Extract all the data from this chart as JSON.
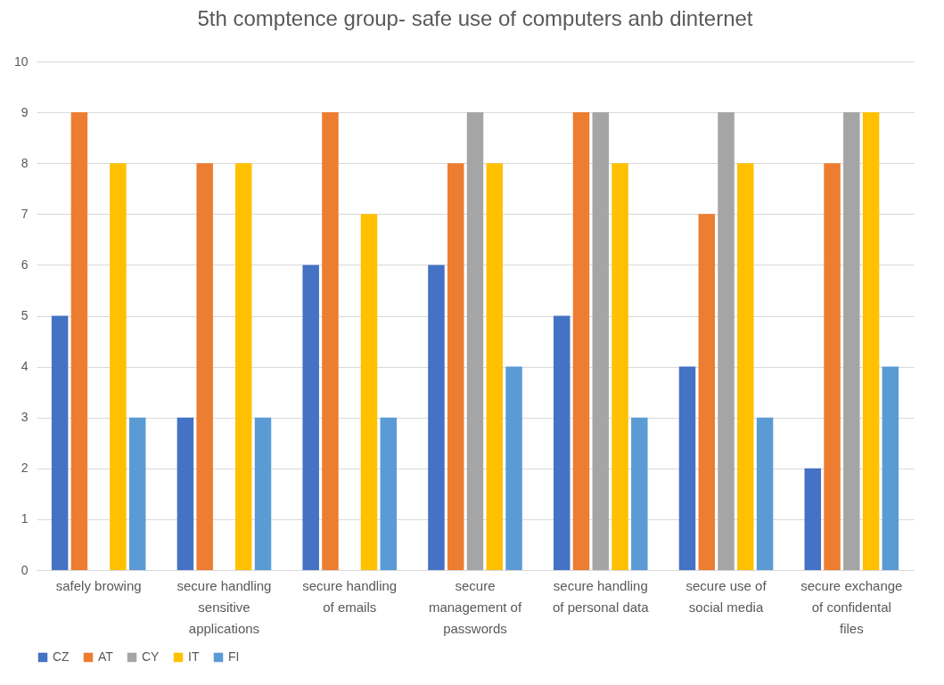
{
  "chart_data": {
    "type": "bar",
    "title": "5th comptence group- safe use of computers anb dinternet",
    "categories": [
      "safely browing",
      "secure handling sensitive applications",
      "secure handling of emails",
      "secure management of passwords",
      "secure handling of personal data",
      "secure use of social media",
      "secure exchange of confidental files"
    ],
    "series": [
      {
        "name": "CZ",
        "color": "#4472c4",
        "values": [
          5,
          3,
          6,
          6,
          5,
          4,
          2
        ]
      },
      {
        "name": "AT",
        "color": "#ed7d31",
        "values": [
          9,
          8,
          9,
          8,
          9,
          7,
          8
        ]
      },
      {
        "name": "CY",
        "color": "#a5a5a5",
        "values": [
          null,
          null,
          null,
          9,
          9,
          9,
          9
        ]
      },
      {
        "name": "IT",
        "color": "#ffc000",
        "values": [
          8,
          8,
          7,
          8,
          8,
          8,
          9
        ]
      },
      {
        "name": "FI",
        "color": "#5b9bd5",
        "values": [
          3,
          3,
          3,
          4,
          3,
          3,
          4
        ]
      }
    ],
    "ylim": [
      0,
      10
    ],
    "yticks": [
      0,
      1,
      2,
      3,
      4,
      5,
      6,
      7,
      8,
      9,
      10
    ],
    "grid": "y",
    "legend": "bottom"
  }
}
